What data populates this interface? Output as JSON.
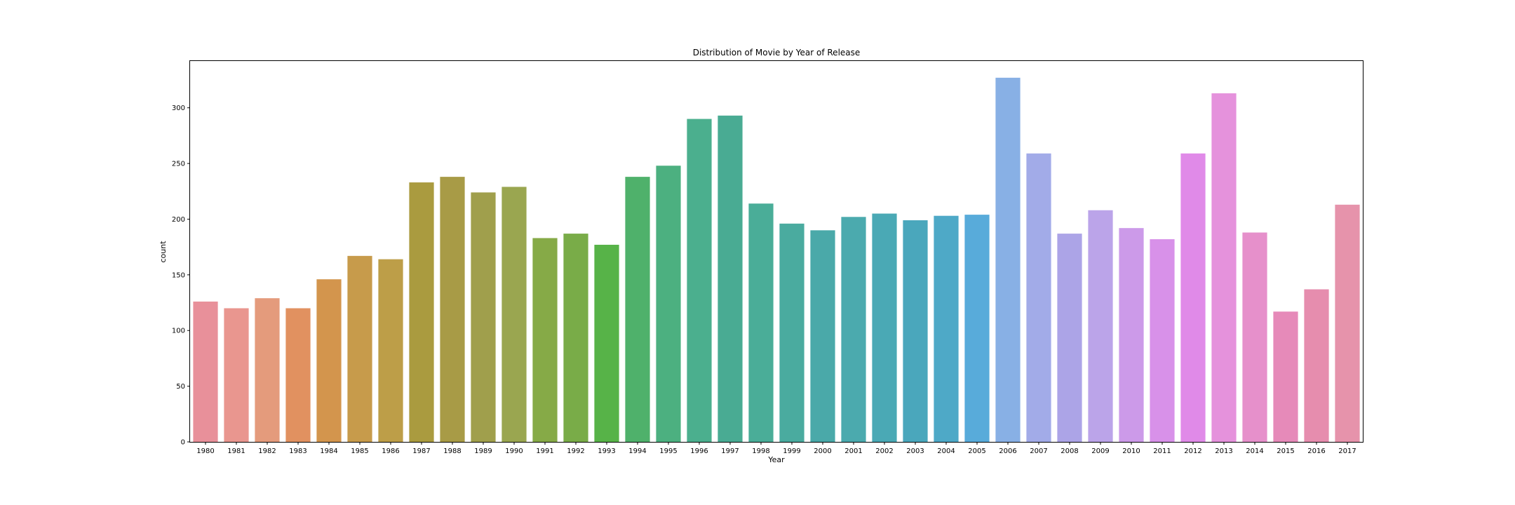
{
  "chart_data": {
    "type": "bar",
    "title": "Distribution of Movie by Year of Release",
    "xlabel": "Year",
    "ylabel": "count",
    "ylim": [
      0,
      342
    ],
    "yticks": [
      0,
      50,
      100,
      150,
      200,
      250,
      300
    ],
    "grid": false,
    "categories": [
      "1980",
      "1981",
      "1982",
      "1983",
      "1984",
      "1985",
      "1986",
      "1987",
      "1988",
      "1989",
      "1990",
      "1991",
      "1992",
      "1993",
      "1994",
      "1995",
      "1996",
      "1997",
      "1998",
      "1999",
      "2000",
      "2001",
      "2002",
      "2003",
      "2004",
      "2005",
      "2006",
      "2007",
      "2008",
      "2009",
      "2010",
      "2011",
      "2012",
      "2013",
      "2014",
      "2015",
      "2016",
      "2017"
    ],
    "values": [
      126,
      120,
      129,
      120,
      146,
      167,
      164,
      233,
      238,
      224,
      229,
      183,
      187,
      177,
      238,
      248,
      290,
      293,
      214,
      196,
      190,
      202,
      205,
      199,
      203,
      204,
      327,
      259,
      187,
      208,
      192,
      182,
      259,
      313,
      188,
      117,
      137,
      213
    ],
    "colors": [
      "#e8909a",
      "#e9968f",
      "#e49b7c",
      "#e19160",
      "#d3954d",
      "#c79b4b",
      "#bd9e48",
      "#aa9b3f",
      "#a89b46",
      "#a09f4c",
      "#9aa650",
      "#86aa47",
      "#79ac48",
      "#57b348",
      "#4fb16b",
      "#4cb080",
      "#4baf8e",
      "#49ab93",
      "#4aad98",
      "#4aab9f",
      "#4aa9a9",
      "#4baaae",
      "#4aa9b5",
      "#4aa7bc",
      "#4ea9c7",
      "#58abda",
      "#88b0e5",
      "#a2abe8",
      "#aca4e7",
      "#bba4e9",
      "#cc9ae9",
      "#d891e9",
      "#e08ae8",
      "#e592dc",
      "#e690cb",
      "#e68ab9",
      "#e68dae",
      "#e693ab"
    ]
  }
}
